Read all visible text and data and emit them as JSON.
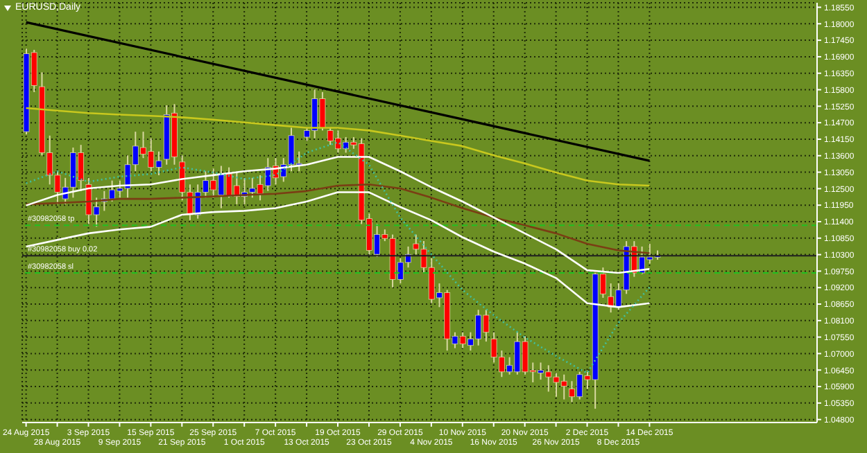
{
  "chart_data": {
    "type": "candlestick",
    "title": "EURUSD,Daily",
    "categories": [
      "24 Aug 2015",
      null,
      null,
      null,
      "28 Aug 2015",
      null,
      null,
      null,
      "3 Sep 2015",
      null,
      null,
      null,
      "9 Sep 2015",
      null,
      null,
      null,
      "15 Sep 2015",
      null,
      null,
      null,
      "21 Sep 2015",
      null,
      null,
      null,
      "25 Sep 2015",
      null,
      null,
      null,
      "1 Oct 2015",
      null,
      null,
      null,
      "7 Oct 2015",
      null,
      null,
      null,
      "13 Oct 2015",
      null,
      null,
      null,
      "19 Oct 2015",
      null,
      null,
      null,
      "23 Oct 2015",
      null,
      null,
      null,
      "29 Oct 2015",
      null,
      null,
      null,
      "4 Nov 2015",
      null,
      null,
      null,
      "10 Nov 2015",
      null,
      null,
      null,
      "16 Nov 2015",
      null,
      null,
      null,
      "20 Nov 2015",
      null,
      null,
      null,
      "26 Nov 2015",
      null,
      null,
      null,
      "2 Dec 2015",
      null,
      null,
      null,
      "8 Dec 2015",
      null,
      null,
      null,
      "14 Dec 2015",
      null,
      null,
      null,
      null,
      null,
      null,
      null,
      null,
      null,
      null,
      null,
      null,
      null,
      null,
      null,
      null,
      null,
      null,
      null,
      null,
      null
    ],
    "ohlc": [
      [
        1.144,
        1.1717,
        1.1431,
        1.17
      ],
      [
        1.1704,
        1.1713,
        1.1572,
        1.1594
      ],
      [
        1.159,
        1.1638,
        1.1361,
        1.137
      ],
      [
        1.137,
        1.1427,
        1.1264,
        1.1295
      ],
      [
        1.1295,
        1.1308,
        1.1198,
        1.1238
      ],
      [
        1.1216,
        1.1286,
        1.1198,
        1.1255
      ],
      [
        1.1255,
        1.1387,
        1.122,
        1.137
      ],
      [
        1.137,
        1.1396,
        1.1242,
        1.1277
      ],
      [
        1.1264,
        1.1286,
        1.1132,
        1.1163
      ],
      [
        1.1163,
        1.122,
        1.1123,
        1.1189
      ],
      [
        1.1207,
        1.1242,
        1.1176,
        1.1216
      ],
      [
        1.1216,
        1.1277,
        1.1207,
        1.1246
      ],
      [
        1.1242,
        1.1277,
        1.122,
        1.1251
      ],
      [
        1.1251,
        1.1361,
        1.122,
        1.133
      ],
      [
        1.133,
        1.144,
        1.1308,
        1.1392
      ],
      [
        1.1387,
        1.144,
        1.1352,
        1.1365
      ],
      [
        1.1374,
        1.1418,
        1.1308,
        1.1321
      ],
      [
        1.1321,
        1.1374,
        1.1295,
        1.1343
      ],
      [
        1.1348,
        1.1528,
        1.133,
        1.1497
      ],
      [
        1.1502,
        1.1532,
        1.133,
        1.1356
      ],
      [
        1.1339,
        1.1361,
        1.1211,
        1.1238
      ],
      [
        1.1238,
        1.1264,
        1.1145,
        1.1163
      ],
      [
        1.1163,
        1.1264,
        1.115,
        1.1238
      ],
      [
        1.1238,
        1.1308,
        1.122,
        1.1277
      ],
      [
        1.1277,
        1.1317,
        1.122,
        1.1246
      ],
      [
        1.1229,
        1.1326,
        1.1185,
        1.1299
      ],
      [
        1.1299,
        1.1321,
        1.122,
        1.1224
      ],
      [
        1.126,
        1.1304,
        1.1198,
        1.1224
      ],
      [
        1.1224,
        1.1286,
        1.1198,
        1.1238
      ],
      [
        1.1238,
        1.1286,
        1.122,
        1.1251
      ],
      [
        1.1264,
        1.1295,
        1.1211,
        1.1233
      ],
      [
        1.126,
        1.1352,
        1.1242,
        1.1321
      ],
      [
        1.1326,
        1.1352,
        1.1264,
        1.1286
      ],
      [
        1.129,
        1.1352,
        1.1273,
        1.133
      ],
      [
        1.133,
        1.1453,
        1.1308,
        1.1427
      ],
      [
        1.133,
        1.1374,
        1.1308,
        1.1334
      ],
      [
        1.1422,
        1.1453,
        1.1409,
        1.1444
      ],
      [
        1.1444,
        1.1581,
        1.1418,
        1.155
      ],
      [
        1.155,
        1.1572,
        1.1444,
        1.1453
      ],
      [
        1.1444,
        1.1453,
        1.1396,
        1.1409
      ],
      [
        1.1418,
        1.1444,
        1.137,
        1.1383
      ],
      [
        1.1383,
        1.1422,
        1.137,
        1.1405
      ],
      [
        1.1405,
        1.1422,
        1.1383,
        1.1396
      ],
      [
        1.14,
        1.1418,
        1.1132,
        1.1145
      ],
      [
        1.115,
        1.1167,
        1.1031,
        1.1044
      ],
      [
        1.1031,
        1.1132,
        1.1022,
        1.1097
      ],
      [
        1.1097,
        1.1114,
        1.1075,
        1.1084
      ],
      [
        1.1084,
        1.1097,
        1.0921,
        1.0947
      ],
      [
        1.0947,
        1.1018,
        1.0934,
        1.1004
      ],
      [
        1.1004,
        1.1057,
        1.0987,
        1.1031
      ],
      [
        1.1066,
        1.1097,
        1.1031,
        1.1048
      ],
      [
        1.1048,
        1.1075,
        1.0969,
        1.0987
      ],
      [
        1.0987,
        1.1018,
        1.0868,
        1.0881
      ],
      [
        1.0886,
        1.0934,
        1.0855,
        1.0903
      ],
      [
        1.0903,
        1.0912,
        1.071,
        1.0749
      ],
      [
        1.0732,
        1.0771,
        1.0718,
        1.0758
      ],
      [
        1.0758,
        1.0771,
        1.0718,
        1.0732
      ],
      [
        1.0727,
        1.0771,
        1.071,
        1.0749
      ],
      [
        1.0749,
        1.0846,
        1.0727,
        1.0828
      ],
      [
        1.0828,
        1.0846,
        1.074,
        1.0771
      ],
      [
        1.0749,
        1.0771,
        1.067,
        1.0688
      ],
      [
        1.0688,
        1.071,
        1.0622,
        1.0639
      ],
      [
        1.0639,
        1.0688,
        1.063,
        1.0661
      ],
      [
        1.0639,
        1.0771,
        1.063,
        1.074
      ],
      [
        1.074,
        1.0758,
        1.063,
        1.0639
      ],
      [
        1.0644,
        1.067,
        1.0604,
        1.0639
      ],
      [
        1.0635,
        1.067,
        1.0613,
        1.0644
      ],
      [
        1.0639,
        1.0661,
        1.0573,
        1.0622
      ],
      [
        1.0622,
        1.0635,
        1.0556,
        1.0604
      ],
      [
        1.0608,
        1.063,
        1.0547,
        1.0591
      ],
      [
        1.0582,
        1.0608,
        1.0538,
        1.0556
      ],
      [
        1.0556,
        1.0639,
        1.0547,
        1.063
      ],
      [
        1.0626,
        1.0639,
        1.0582,
        1.0613
      ],
      [
        1.0613,
        1.0969,
        1.0516,
        1.0965
      ],
      [
        1.0965,
        1.0987,
        1.0886,
        1.0899
      ],
      [
        1.089,
        1.0934,
        1.0837,
        1.0855
      ],
      [
        1.0855,
        1.0934,
        1.0846,
        1.0912
      ],
      [
        1.0912,
        1.1075,
        1.0899,
        1.1057
      ],
      [
        1.1057,
        1.1075,
        1.0956,
        1.0969
      ],
      [
        1.0969,
        1.1057,
        1.0965,
        1.1022
      ],
      [
        1.1013,
        1.1066,
        1.1,
        1.1022
      ],
      [
        1.1022,
        1.1044,
        1.1013,
        1.1026
      ],
      null,
      null,
      null,
      null,
      null,
      null,
      null,
      null,
      null,
      null,
      null,
      null,
      null,
      null,
      null,
      null,
      null,
      null,
      null,
      null
    ],
    "colors": [
      "#0000ff",
      "#ff0000",
      "#ff0000",
      "#ff0000",
      "#ff0000",
      "#0000ff",
      "#0000ff",
      "#ff0000",
      "#ff0000",
      "#0000ff",
      "#0000ff",
      "#0000ff",
      "#0000ff",
      "#0000ff",
      "#0000ff",
      "#ff0000",
      "#ff0000",
      "#0000ff",
      "#0000ff",
      "#ff0000",
      "#ff0000",
      "#ff0000",
      "#0000ff",
      "#0000ff",
      "#ff0000",
      "#0000ff",
      "#ff0000",
      "#ff0000",
      "#0000ff",
      "#0000ff",
      "#ff0000",
      "#0000ff",
      "#ff0000",
      "#0000ff",
      "#0000ff",
      "#0000ff",
      "#0000ff",
      "#0000ff",
      "#ff0000",
      "#ff0000",
      "#ff0000",
      "#0000ff",
      "#ff0000",
      "#ff0000",
      "#ff0000",
      "#0000ff",
      "#ff0000",
      "#ff0000",
      "#0000ff",
      "#0000ff",
      "#ff0000",
      "#ff0000",
      "#ff0000",
      "#0000ff",
      "#ff0000",
      "#0000ff",
      "#ff0000",
      "#0000ff",
      "#0000ff",
      "#ff0000",
      "#ff0000",
      "#ff0000",
      "#0000ff",
      "#0000ff",
      "#ff0000",
      "#ff0000",
      "#0000ff",
      "#ff0000",
      "#ff0000",
      "#ff0000",
      "#ff0000",
      "#0000ff",
      "#ff0000",
      "#0000ff",
      "#ff0000",
      "#ff0000",
      "#0000ff",
      "#0000ff",
      "#ff0000",
      "#0000ff",
      "#0000ff",
      "#0000ff",
      null,
      null,
      null,
      null,
      null,
      null,
      null,
      null,
      null,
      null,
      null,
      null,
      null,
      null,
      null,
      null,
      null,
      null,
      null,
      null
    ],
    "series": [
      {
        "type": "line",
        "color": "#000000",
        "x": [
          "24 Aug 2015",
          "14 Dec 2015"
        ],
        "values": [
          1.1805,
          1.1343
        ]
      },
      {
        "type": "line",
        "color": "#c8c81e",
        "x": [
          "24 Aug 2015",
          "28 Aug 2015",
          "3 Sep 2015",
          "9 Sep 2015",
          "15 Sep 2015",
          "21 Sep 2015",
          "25 Sep 2015",
          "1 Oct 2015",
          "7 Oct 2015",
          "13 Oct 2015",
          "19 Oct 2015",
          "23 Oct 2015",
          "29 Oct 2015",
          "4 Nov 2015",
          "10 Nov 2015",
          "16 Nov 2015",
          "20 Nov 2015",
          "26 Nov 2015",
          "2 Dec 2015",
          "8 Dec 2015",
          "14 Dec 2015"
        ],
        "values": [
          1.1519,
          1.151,
          1.1502,
          1.1497,
          1.1493,
          1.1488,
          1.148,
          1.1471,
          1.1462,
          1.1453,
          1.1453,
          1.1444,
          1.1427,
          1.1409,
          1.1392,
          1.1361,
          1.1334,
          1.1304,
          1.1277,
          1.1264,
          1.126
        ]
      },
      {
        "type": "line",
        "color": "#7a3e14",
        "x": [
          "24 Aug 2015",
          "28 Aug 2015",
          "3 Sep 2015",
          "9 Sep 2015",
          "15 Sep 2015",
          "21 Sep 2015",
          "25 Sep 2015",
          "1 Oct 2015",
          "7 Oct 2015",
          "13 Oct 2015",
          "19 Oct 2015",
          "23 Oct 2015",
          "29 Oct 2015",
          "4 Nov 2015",
          "10 Nov 2015",
          "16 Nov 2015",
          "20 Nov 2015",
          "26 Nov 2015",
          "2 Dec 2015",
          "8 Dec 2015",
          "14 Dec 2015"
        ],
        "values": [
          1.1198,
          1.1202,
          1.1207,
          1.1216,
          1.1216,
          1.122,
          1.1224,
          1.1229,
          1.1233,
          1.1242,
          1.126,
          1.1264,
          1.1251,
          1.122,
          1.1185,
          1.1154,
          1.1128,
          1.1101,
          1.1066,
          1.1044,
          1.1035
        ]
      },
      {
        "type": "line",
        "color": "#ffffff",
        "x": [
          "24 Aug 2015",
          "28 Aug 2015",
          "3 Sep 2015",
          "9 Sep 2015",
          "15 Sep 2015",
          "21 Sep 2015",
          "25 Sep 2015",
          "1 Oct 2015",
          "7 Oct 2015",
          "13 Oct 2015",
          "19 Oct 2015",
          "23 Oct 2015",
          "29 Oct 2015",
          "4 Nov 2015",
          "10 Nov 2015",
          "16 Nov 2015",
          "20 Nov 2015",
          "26 Nov 2015",
          "2 Dec 2015",
          "8 Dec 2015",
          "14 Dec 2015"
        ],
        "values": [
          1.1194,
          1.1229,
          1.1251,
          1.126,
          1.1264,
          1.1282,
          1.1295,
          1.1308,
          1.1317,
          1.133,
          1.1356,
          1.1356,
          1.1308,
          1.1255,
          1.1207,
          1.1154,
          1.1101,
          1.1048,
          1.0978,
          1.0969,
          1.0982
        ]
      },
      {
        "type": "line",
        "color": "#ffffff",
        "x": [
          "24 Aug 2015",
          "28 Aug 2015",
          "3 Sep 2015",
          "9 Sep 2015",
          "15 Sep 2015",
          "21 Sep 2015",
          "25 Sep 2015",
          "1 Oct 2015",
          "7 Oct 2015",
          "13 Oct 2015",
          "19 Oct 2015",
          "23 Oct 2015",
          "29 Oct 2015",
          "4 Nov 2015",
          "10 Nov 2015",
          "16 Nov 2015",
          "20 Nov 2015",
          "26 Nov 2015",
          "2 Dec 2015",
          "8 Dec 2015",
          "14 Dec 2015"
        ],
        "values": [
          1.1057,
          1.1079,
          1.1101,
          1.1114,
          1.1123,
          1.1163,
          1.1172,
          1.1176,
          1.1185,
          1.1207,
          1.1238,
          1.1238,
          1.1189,
          1.1145,
          1.1088,
          1.104,
          1.1,
          1.0952,
          1.0868,
          1.0855,
          1.0868
        ]
      },
      {
        "type": "line",
        "color": "#40c0a0",
        "line_style": "dotted",
        "x": [
          "24 Aug 2015",
          "28 Aug 2015",
          "3 Sep 2015",
          "9 Sep 2015",
          "15 Sep 2015",
          "21 Sep 2015",
          "25 Sep 2015",
          "1 Oct 2015",
          "7 Oct 2015",
          "13 Oct 2015",
          "19 Oct 2015",
          "23 Oct 2015",
          "29 Oct 2015",
          "4 Nov 2015",
          "10 Nov 2015",
          "16 Nov 2015",
          "20 Nov 2015",
          "26 Nov 2015",
          "2 Dec 2015",
          "8 Dec 2015",
          "14 Dec 2015"
        ],
        "values": [
          1.1268,
          1.1308,
          1.1273,
          1.129,
          1.1299,
          1.1321,
          1.1304,
          1.1282,
          1.1295,
          1.137,
          1.1405,
          1.133,
          1.1154,
          1.1031,
          1.0912,
          1.0828,
          1.0754,
          1.0692,
          1.0635,
          1.0802,
          1.0921
        ]
      }
    ],
    "ref_lines": [
      {
        "axis": "y",
        "value": 1.1128,
        "label": "#30982058 tp",
        "color": "#20c020",
        "line_style": "dashed"
      },
      {
        "axis": "y",
        "value": 1.1026,
        "label": "#30982058 buy 0.02",
        "color": "#202020",
        "line_style": "solid"
      },
      {
        "axis": "y",
        "value": 1.0969,
        "label": "#30982058 sl",
        "color": "#20c020",
        "line_style": "dashed"
      }
    ],
    "ylim": [
      1.047,
      1.187
    ],
    "yticks": [
      {
        "value": 1.048,
        "label": "1.04800"
      },
      {
        "value": 1.0535,
        "label": "1.05350"
      },
      {
        "value": 1.059,
        "label": "1.05900"
      },
      {
        "value": 1.0645,
        "label": "1.06450"
      },
      {
        "value": 1.07,
        "label": "1.07000"
      },
      {
        "value": 1.0755,
        "label": "1.07550"
      },
      {
        "value": 1.081,
        "label": "1.08100"
      },
      {
        "value": 1.0865,
        "label": "1.08650"
      },
      {
        "value": 1.092,
        "label": "1.09200"
      },
      {
        "value": 1.0975,
        "label": "1.09750"
      },
      {
        "value": 1.103,
        "label": "1.10300"
      },
      {
        "value": 1.1085,
        "label": "1.10850"
      },
      {
        "value": 1.114,
        "label": "1.11400"
      },
      {
        "value": 1.1195,
        "label": "1.11950"
      },
      {
        "value": 1.125,
        "label": "1.12500"
      },
      {
        "value": 1.1305,
        "label": "1.13050"
      },
      {
        "value": 1.136,
        "label": "1.13600"
      },
      {
        "value": 1.1415,
        "label": "1.14150"
      },
      {
        "value": 1.147,
        "label": "1.14700"
      },
      {
        "value": 1.1525,
        "label": "1.15250"
      },
      {
        "value": 1.158,
        "label": "1.15800"
      },
      {
        "value": 1.1635,
        "label": "1.16350"
      },
      {
        "value": 1.169,
        "label": "1.16900"
      },
      {
        "value": 1.1745,
        "label": "1.17450"
      },
      {
        "value": 1.18,
        "label": "1.18000"
      },
      {
        "value": 1.1855,
        "label": "1.18550"
      }
    ],
    "grid": true,
    "marker": "none"
  }
}
